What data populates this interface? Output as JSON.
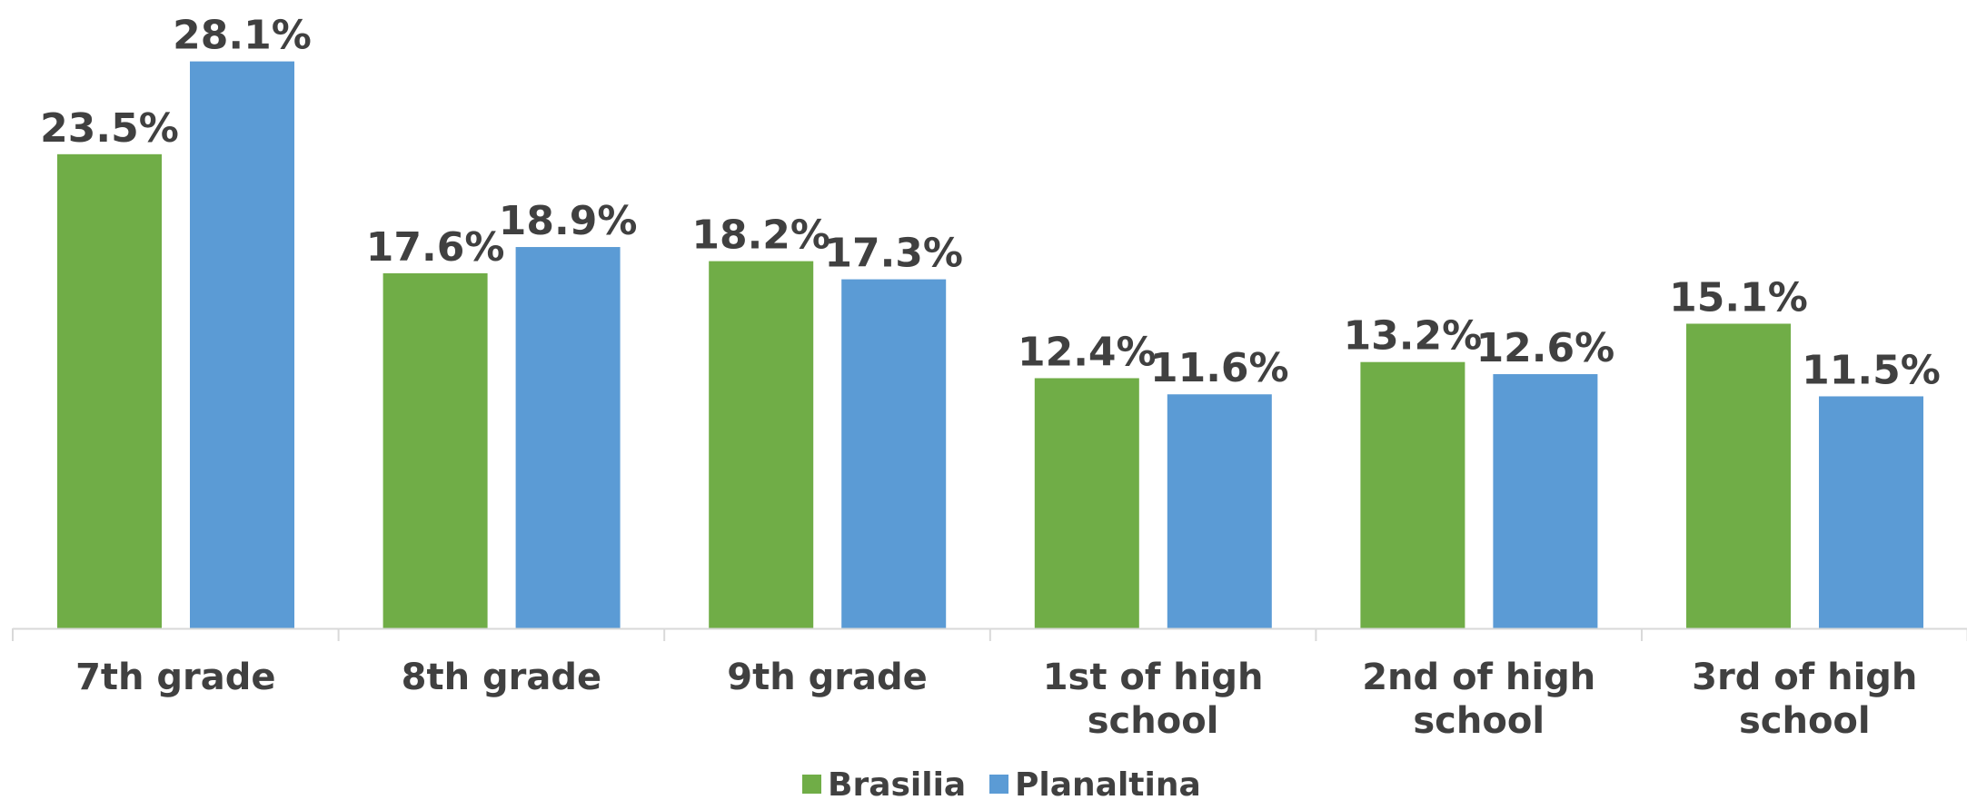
{
  "chart_data": {
    "type": "bar",
    "title": "",
    "xlabel": "",
    "ylabel": "",
    "ylim": [
      0,
      30
    ],
    "grid": false,
    "legend_position": "bottom",
    "value_suffix": "%",
    "categories": [
      [
        "7th grade"
      ],
      [
        "8th grade"
      ],
      [
        "9th grade"
      ],
      [
        "1st of high",
        "school"
      ],
      [
        "2nd of high",
        "school"
      ],
      [
        "3rd of high",
        "school"
      ]
    ],
    "series": [
      {
        "name": "Brasilia",
        "color": "#70AD47",
        "values": [
          23.5,
          17.6,
          18.2,
          12.4,
          13.2,
          15.1
        ],
        "labels": [
          "23.5%",
          "17.6%",
          "18.2%",
          "12.4%",
          "13.2%",
          "15.1%"
        ]
      },
      {
        "name": "Planaltina",
        "color": "#5B9BD5",
        "values": [
          28.1,
          18.9,
          17.3,
          11.6,
          12.6,
          11.5
        ],
        "labels": [
          "28.1%",
          "18.9%",
          "17.3%",
          "11.6%",
          "12.6%",
          "11.5%"
        ]
      }
    ]
  }
}
